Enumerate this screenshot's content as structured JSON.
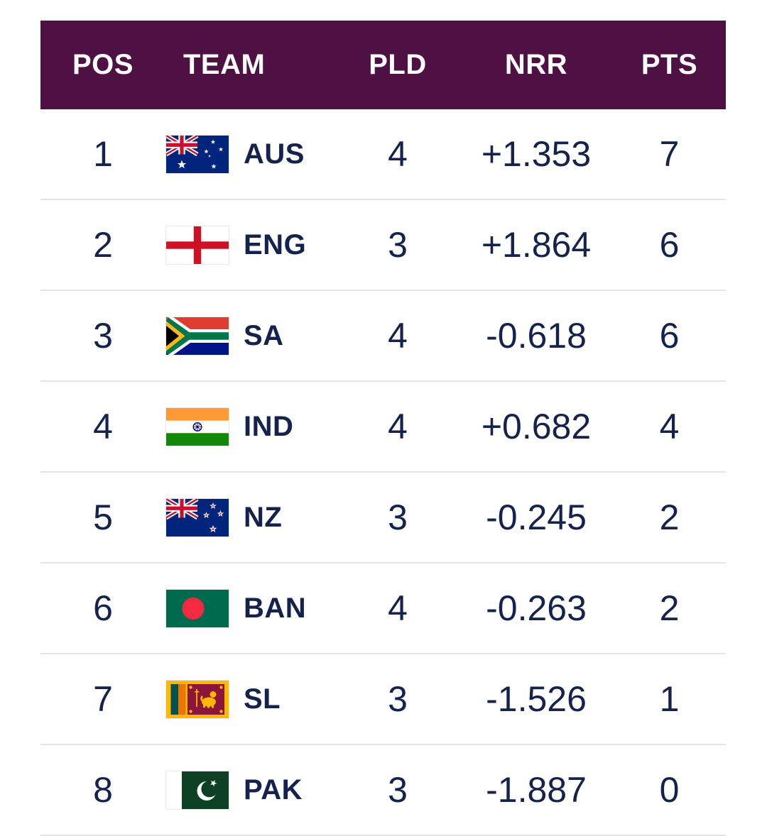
{
  "colors": {
    "header_bg": "#4F1043",
    "text": "#14224F",
    "divider": "#E3E3E3"
  },
  "table": {
    "headers": {
      "pos": "POS",
      "team": "TEAM",
      "pld": "PLD",
      "nrr": "NRR",
      "pts": "PTS"
    },
    "rows": [
      {
        "pos": "1",
        "team": "AUS",
        "flag": "australia-flag",
        "pld": "4",
        "nrr": "+1.353",
        "pts": "7"
      },
      {
        "pos": "2",
        "team": "ENG",
        "flag": "england-flag",
        "pld": "3",
        "nrr": "+1.864",
        "pts": "6"
      },
      {
        "pos": "3",
        "team": "SA",
        "flag": "south-africa-flag",
        "pld": "4",
        "nrr": "-0.618",
        "pts": "6"
      },
      {
        "pos": "4",
        "team": "IND",
        "flag": "india-flag",
        "pld": "4",
        "nrr": "+0.682",
        "pts": "4"
      },
      {
        "pos": "5",
        "team": "NZ",
        "flag": "new-zealand-flag",
        "pld": "3",
        "nrr": "-0.245",
        "pts": "2"
      },
      {
        "pos": "6",
        "team": "BAN",
        "flag": "bangladesh-flag",
        "pld": "4",
        "nrr": "-0.263",
        "pts": "2"
      },
      {
        "pos": "7",
        "team": "SL",
        "flag": "sri-lanka-flag",
        "pld": "3",
        "nrr": "-1.526",
        "pts": "1"
      },
      {
        "pos": "8",
        "team": "PAK",
        "flag": "pakistan-flag",
        "pld": "3",
        "nrr": "-1.887",
        "pts": "0"
      }
    ]
  }
}
